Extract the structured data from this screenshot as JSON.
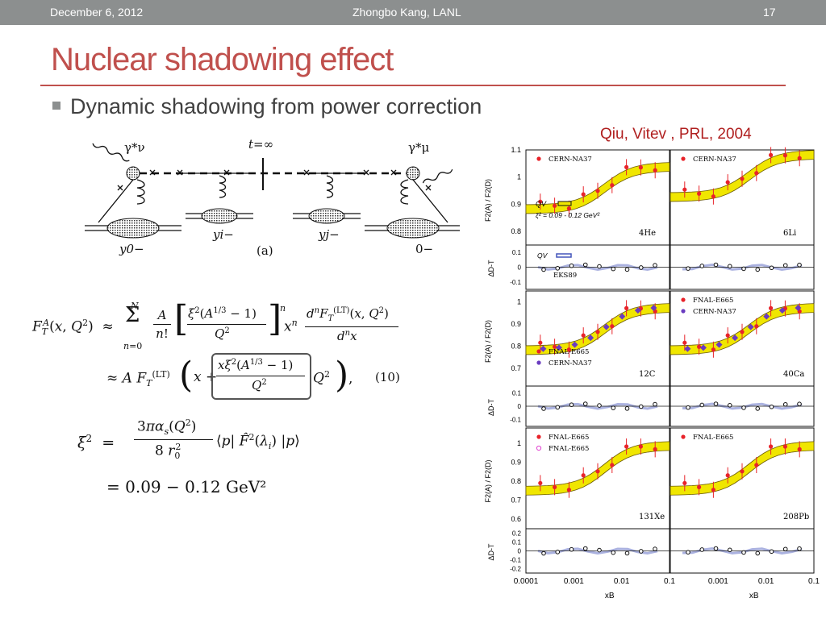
{
  "header": {
    "date": "December 6, 2012",
    "author": "Zhongbo Kang, LANL",
    "page_number": "17"
  },
  "slide": {
    "title": "Nuclear shadowing effect",
    "bullet": "Dynamic shadowing from power correction",
    "citation": "Qiu, Vitev , PRL, 2004"
  },
  "colors": {
    "title": "#c0504d",
    "topbar": "#8c8f8f",
    "band_fill": "#f0e600",
    "qv_curve": "#4455bb",
    "e665_marker": "#e8232a",
    "na37_marker": "#6a3cc0",
    "e665_open_marker": "#e040d0"
  },
  "diagram": {
    "photon_left": "γ*ν",
    "photon_right": "γ*μ",
    "t_label": "t=∞",
    "y0": "y0−",
    "yi": "yi−",
    "yj": "yj−",
    "zero": "0−",
    "panel_label": "(a)"
  },
  "equations": {
    "eq_number": "(10)",
    "xi_value": "= 0.09 − 0.12 GeV²"
  },
  "figure": {
    "ylabel_ratio": "F2(A) / F2(D)",
    "ylabel_delta": "ΔD-T",
    "xlabel": "xB",
    "x_ticks": [
      "0.0001",
      "0.001",
      "0.01",
      "0.1"
    ],
    "rows": [
      {
        "ratio_ticks": [
          "1.1",
          "1",
          "0.9",
          "0.8"
        ],
        "delta_ticks": [
          "0.1",
          "0",
          "-0.1"
        ],
        "panels": [
          {
            "nucleus": "4He",
            "legend": [
              "CERN-NA37"
            ],
            "qv_label": "QV",
            "xi_label": "ξ² = 0.09 - 0.12 GeV²",
            "delta_legend": [
              "QV",
              "EKS89"
            ]
          },
          {
            "nucleus": "6Li",
            "legend": [
              "CERN-NA37"
            ]
          }
        ]
      },
      {
        "ratio_ticks": [
          "1",
          "0.9",
          "0.8",
          "0.7"
        ],
        "delta_ticks": [
          "0.1",
          "0",
          "-0.1"
        ],
        "panels": [
          {
            "nucleus": "12C",
            "legend": [
              "FNAL-E665",
              "CERN-NA37"
            ]
          },
          {
            "nucleus": "40Ca",
            "legend": [
              "FNAL-E665",
              "CERN-NA37"
            ]
          }
        ]
      },
      {
        "ratio_ticks": [
          "1",
          "0.9",
          "0.8",
          "0.7",
          "0.6"
        ],
        "delta_ticks": [
          "0.2",
          "0.1",
          "0",
          "-0.1",
          "-0.2"
        ],
        "panels": [
          {
            "nucleus": "131Xe",
            "legend": [
              "FNAL-E665",
              "FNAL-E665"
            ]
          },
          {
            "nucleus": "208Pb",
            "legend": [
              "FNAL-E665"
            ]
          }
        ]
      }
    ]
  }
}
